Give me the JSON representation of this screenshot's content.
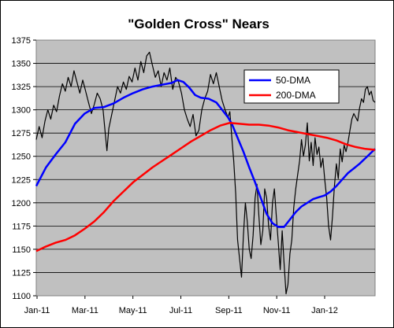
{
  "chart_data": {
    "type": "line",
    "title": "\"Golden Cross\" Nears",
    "xlabel": "",
    "ylabel": "",
    "ylim": [
      1100,
      1375
    ],
    "y_ticks": [
      1100,
      1125,
      1150,
      1175,
      1200,
      1225,
      1250,
      1275,
      1300,
      1325,
      1350,
      1375
    ],
    "x_ticks": [
      "Jan-11",
      "Mar-11",
      "May-11",
      "Jul-11",
      "Sep-11",
      "Nov-11",
      "Jan-12"
    ],
    "grid": "horizontal",
    "legend_position": "top-right-inside",
    "colors": {
      "plot_bg": "#c0c0c0",
      "price": "#000000",
      "dma50": "#0000ff",
      "dma200": "#ff0000"
    },
    "series": [
      {
        "key": "price",
        "points": [
          [
            0,
            1268
          ],
          [
            3,
            1282
          ],
          [
            6,
            1270
          ],
          [
            9,
            1288
          ],
          [
            12,
            1300
          ],
          [
            15,
            1290
          ],
          [
            18,
            1305
          ],
          [
            21,
            1298
          ],
          [
            24,
            1315
          ],
          [
            27,
            1328
          ],
          [
            30,
            1320
          ],
          [
            33,
            1335
          ],
          [
            36,
            1325
          ],
          [
            39,
            1342
          ],
          [
            42,
            1330
          ],
          [
            45,
            1318
          ],
          [
            48,
            1332
          ],
          [
            51,
            1320
          ],
          [
            54,
            1308
          ],
          [
            57,
            1296
          ],
          [
            60,
            1306
          ],
          [
            63,
            1318
          ],
          [
            66,
            1312
          ],
          [
            69,
            1300
          ],
          [
            71,
            1278
          ],
          [
            73,
            1256
          ],
          [
            75,
            1280
          ],
          [
            78,
            1295
          ],
          [
            81,
            1310
          ],
          [
            84,
            1325
          ],
          [
            87,
            1318
          ],
          [
            90,
            1330
          ],
          [
            93,
            1322
          ],
          [
            96,
            1336
          ],
          [
            99,
            1330
          ],
          [
            102,
            1345
          ],
          [
            105,
            1332
          ],
          [
            108,
            1352
          ],
          [
            111,
            1340
          ],
          [
            114,
            1358
          ],
          [
            117,
            1362
          ],
          [
            120,
            1348
          ],
          [
            123,
            1335
          ],
          [
            126,
            1342
          ],
          [
            129,
            1325
          ],
          [
            132,
            1340
          ],
          [
            135,
            1332
          ],
          [
            138,
            1345
          ],
          [
            141,
            1322
          ],
          [
            144,
            1335
          ],
          [
            147,
            1330
          ],
          [
            150,
            1318
          ],
          [
            153,
            1300
          ],
          [
            156,
            1290
          ],
          [
            159,
            1282
          ],
          [
            162,
            1295
          ],
          [
            165,
            1272
          ],
          [
            168,
            1278
          ],
          [
            171,
            1300
          ],
          [
            174,
            1312
          ],
          [
            177,
            1320
          ],
          [
            180,
            1338
          ],
          [
            183,
            1328
          ],
          [
            186,
            1340
          ],
          [
            188,
            1330
          ],
          [
            190,
            1320
          ],
          [
            192,
            1310
          ],
          [
            195,
            1300
          ],
          [
            198,
            1292
          ],
          [
            200,
            1298
          ],
          [
            202,
            1270
          ],
          [
            204,
            1245
          ],
          [
            206,
            1210
          ],
          [
            208,
            1160
          ],
          [
            210,
            1140
          ],
          [
            212,
            1120
          ],
          [
            214,
            1165
          ],
          [
            216,
            1200
          ],
          [
            218,
            1180
          ],
          [
            220,
            1150
          ],
          [
            222,
            1140
          ],
          [
            224,
            1165
          ],
          [
            226,
            1205
          ],
          [
            228,
            1220
          ],
          [
            230,
            1185
          ],
          [
            232,
            1155
          ],
          [
            234,
            1170
          ],
          [
            236,
            1215
          ],
          [
            238,
            1205
          ],
          [
            240,
            1175
          ],
          [
            242,
            1160
          ],
          [
            244,
            1200
          ],
          [
            246,
            1215
          ],
          [
            248,
            1185
          ],
          [
            250,
            1158
          ],
          [
            252,
            1128
          ],
          [
            254,
            1170
          ],
          [
            256,
            1135
          ],
          [
            258,
            1102
          ],
          [
            260,
            1112
          ],
          [
            262,
            1145
          ],
          [
            264,
            1160
          ],
          [
            266,
            1195
          ],
          [
            268,
            1215
          ],
          [
            270,
            1230
          ],
          [
            272,
            1245
          ],
          [
            274,
            1268
          ],
          [
            276,
            1250
          ],
          [
            278,
            1262
          ],
          [
            280,
            1286
          ],
          [
            282,
            1245
          ],
          [
            284,
            1265
          ],
          [
            286,
            1240
          ],
          [
            288,
            1270
          ],
          [
            290,
            1252
          ],
          [
            292,
            1260
          ],
          [
            294,
            1238
          ],
          [
            296,
            1248
          ],
          [
            298,
            1225
          ],
          [
            300,
            1205
          ],
          [
            302,
            1175
          ],
          [
            304,
            1160
          ],
          [
            306,
            1185
          ],
          [
            308,
            1218
          ],
          [
            310,
            1242
          ],
          [
            312,
            1226
          ],
          [
            314,
            1258
          ],
          [
            316,
            1244
          ],
          [
            318,
            1262
          ],
          [
            320,
            1255
          ],
          [
            322,
            1265
          ],
          [
            324,
            1278
          ],
          [
            326,
            1290
          ],
          [
            328,
            1296
          ],
          [
            330,
            1292
          ],
          [
            332,
            1288
          ],
          [
            334,
            1302
          ],
          [
            336,
            1312
          ],
          [
            338,
            1308
          ],
          [
            340,
            1322
          ],
          [
            342,
            1325
          ],
          [
            344,
            1316
          ],
          [
            346,
            1320
          ],
          [
            348,
            1310
          ],
          [
            350,
            1308
          ]
        ]
      },
      {
        "name": "50-DMA",
        "key": "dma50",
        "points": [
          [
            0,
            1218
          ],
          [
            10,
            1238
          ],
          [
            20,
            1252
          ],
          [
            30,
            1265
          ],
          [
            40,
            1285
          ],
          [
            50,
            1296
          ],
          [
            60,
            1302
          ],
          [
            70,
            1303
          ],
          [
            80,
            1307
          ],
          [
            90,
            1313
          ],
          [
            100,
            1318
          ],
          [
            110,
            1322
          ],
          [
            120,
            1325
          ],
          [
            130,
            1327
          ],
          [
            140,
            1329
          ],
          [
            146,
            1332
          ],
          [
            152,
            1330
          ],
          [
            158,
            1324
          ],
          [
            164,
            1316
          ],
          [
            170,
            1313
          ],
          [
            178,
            1312
          ],
          [
            186,
            1308
          ],
          [
            192,
            1300
          ],
          [
            198,
            1292
          ],
          [
            202,
            1285
          ],
          [
            208,
            1270
          ],
          [
            214,
            1255
          ],
          [
            220,
            1238
          ],
          [
            226,
            1222
          ],
          [
            232,
            1205
          ],
          [
            238,
            1188
          ],
          [
            244,
            1178
          ],
          [
            250,
            1174
          ],
          [
            256,
            1174
          ],
          [
            262,
            1182
          ],
          [
            268,
            1190
          ],
          [
            274,
            1196
          ],
          [
            280,
            1200
          ],
          [
            286,
            1204
          ],
          [
            292,
            1206
          ],
          [
            298,
            1208
          ],
          [
            304,
            1212
          ],
          [
            310,
            1218
          ],
          [
            316,
            1225
          ],
          [
            322,
            1232
          ],
          [
            328,
            1237
          ],
          [
            334,
            1242
          ],
          [
            340,
            1248
          ],
          [
            346,
            1254
          ],
          [
            350,
            1258
          ]
        ]
      },
      {
        "name": "200-DMA",
        "key": "dma200",
        "points": [
          [
            0,
            1148
          ],
          [
            10,
            1153
          ],
          [
            20,
            1157
          ],
          [
            30,
            1160
          ],
          [
            40,
            1165
          ],
          [
            50,
            1172
          ],
          [
            60,
            1180
          ],
          [
            70,
            1190
          ],
          [
            80,
            1202
          ],
          [
            90,
            1212
          ],
          [
            100,
            1222
          ],
          [
            110,
            1230
          ],
          [
            120,
            1238
          ],
          [
            130,
            1245
          ],
          [
            140,
            1252
          ],
          [
            150,
            1259
          ],
          [
            160,
            1266
          ],
          [
            170,
            1272
          ],
          [
            180,
            1278
          ],
          [
            190,
            1283
          ],
          [
            200,
            1286
          ],
          [
            210,
            1285
          ],
          [
            220,
            1284
          ],
          [
            230,
            1284
          ],
          [
            240,
            1283
          ],
          [
            250,
            1281
          ],
          [
            260,
            1278
          ],
          [
            270,
            1276
          ],
          [
            280,
            1274
          ],
          [
            290,
            1272
          ],
          [
            300,
            1270
          ],
          [
            310,
            1267
          ],
          [
            320,
            1263
          ],
          [
            330,
            1260
          ],
          [
            340,
            1258
          ],
          [
            350,
            1257
          ]
        ]
      }
    ]
  }
}
